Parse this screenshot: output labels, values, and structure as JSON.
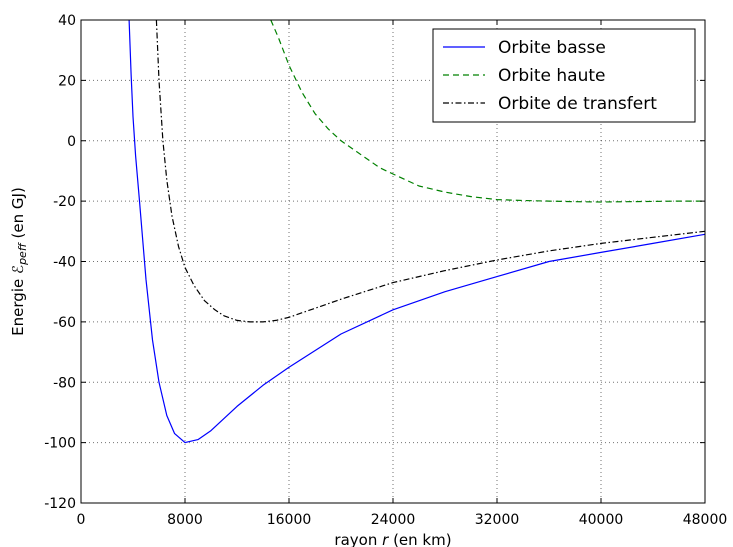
{
  "chart_data": {
    "type": "line",
    "title": "",
    "xlabel_parts": [
      "rayon ",
      "r",
      " (en km)"
    ],
    "ylabel_parts": [
      "Energie ",
      "ℰ",
      "peff",
      " (en GJ)"
    ],
    "xlim": [
      0,
      48000
    ],
    "ylim": [
      -120,
      40
    ],
    "xticks": [
      0,
      8000,
      16000,
      24000,
      32000,
      40000,
      48000
    ],
    "yticks": [
      40,
      20,
      0,
      -20,
      -40,
      -60,
      -80,
      -100,
      -120
    ],
    "grid": true,
    "legend_position": "top-right",
    "series": [
      {
        "name": "Orbite basse",
        "color": "#0000ff",
        "dash": "solid",
        "x": [
          3700,
          3850,
          4000,
          4200,
          4500,
          5000,
          5500,
          6000,
          6600,
          7200,
          8000,
          9000,
          10000,
          12000,
          14000,
          16000,
          20000,
          24000,
          28000,
          32000,
          36000,
          40000,
          44000,
          48000
        ],
        "y": [
          40,
          22,
          8,
          -5,
          -20,
          -46,
          -66,
          -80,
          -91,
          -97,
          -100,
          -99,
          -96,
          -88,
          -81,
          -75,
          -64,
          -56,
          -50,
          -45,
          -40,
          -37,
          -34,
          -31
        ]
      },
      {
        "name": "Orbite haute",
        "color": "#008000",
        "dash": "dashed",
        "x": [
          14600,
          15200,
          16000,
          17000,
          18000,
          19000,
          20000,
          21000,
          22000,
          23000,
          24000,
          25000,
          26000,
          28000,
          30000,
          32000,
          34000,
          36000,
          38000,
          40000,
          42000,
          44000,
          46000,
          48000
        ],
        "y": [
          40,
          34,
          25,
          16,
          9,
          4,
          0,
          -3,
          -6,
          -9,
          -11,
          -13,
          -15,
          -17,
          -18.5,
          -19.5,
          -19.8,
          -20,
          -20.2,
          -20.3,
          -20.2,
          -20.1,
          -20,
          -20
        ]
      },
      {
        "name": "Orbite de transfert",
        "color": "#000000",
        "dash": "dashdot",
        "x": [
          5800,
          6000,
          6300,
          6600,
          7000,
          7500,
          8000,
          8700,
          9500,
          10300,
          11000,
          12000,
          13000,
          14000,
          15000,
          16000,
          18000,
          20000,
          24000,
          28000,
          32000,
          36000,
          40000,
          44000,
          48000
        ],
        "y": [
          40,
          20,
          0,
          -13,
          -25,
          -35,
          -42,
          -48,
          -53,
          -56,
          -58,
          -59.5,
          -60,
          -60,
          -59.5,
          -58.5,
          -55.5,
          -52.5,
          -47,
          -43,
          -39.5,
          -36.5,
          -34,
          -32,
          -30
        ]
      }
    ]
  }
}
